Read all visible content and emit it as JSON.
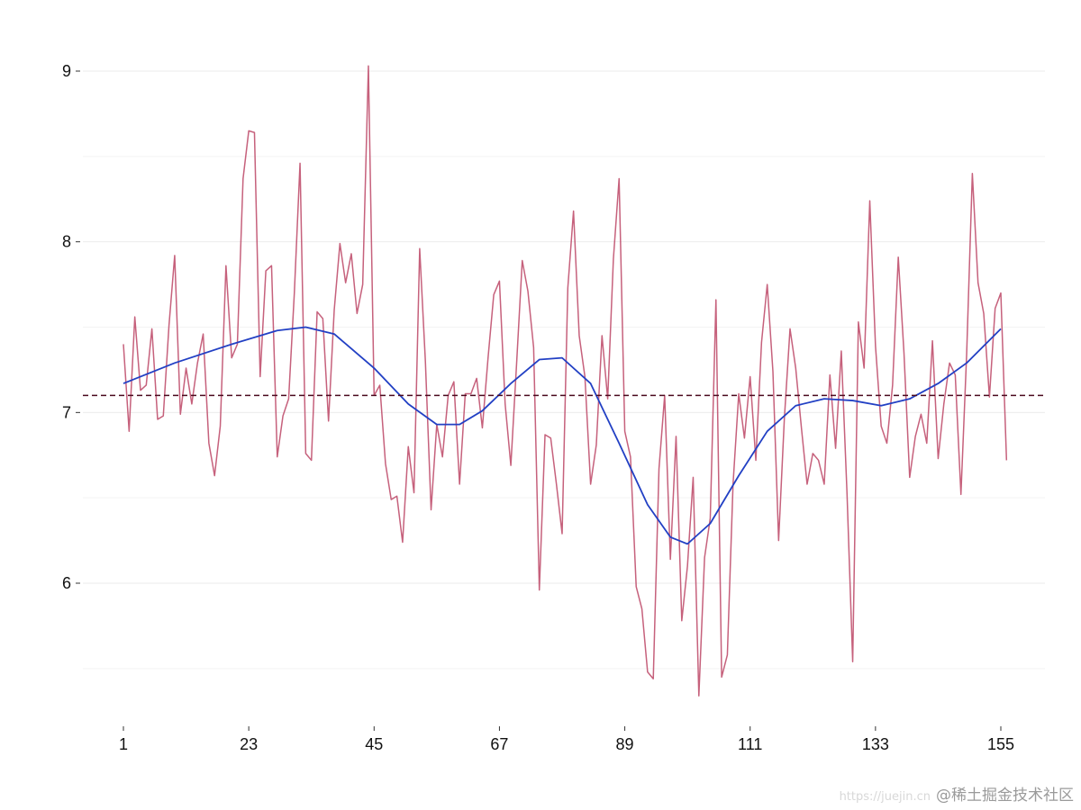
{
  "chart_data": {
    "type": "line",
    "title": "",
    "xlabel": "",
    "ylabel": "",
    "xlim": [
      1,
      155
    ],
    "ylim": [
      5.3,
      9.25
    ],
    "x_ticks": [
      1,
      23,
      45,
      67,
      89,
      111,
      133,
      155
    ],
    "y_ticks": [
      6,
      7,
      8,
      9
    ],
    "grid": "horizontal",
    "legend": "none",
    "reference_line": {
      "y": 7.1,
      "style": "dashed",
      "color": "#4a0a1e"
    },
    "series": [
      {
        "kind": "raw",
        "color": "#c0506e",
        "x_start": 1,
        "x_step": 1,
        "values": [
          7.4,
          6.89,
          7.56,
          7.13,
          7.16,
          7.49,
          6.96,
          6.98,
          7.51,
          7.92,
          6.99,
          7.26,
          7.05,
          7.29,
          7.46,
          6.82,
          6.63,
          6.92,
          7.86,
          7.32,
          7.4,
          8.37,
          8.65,
          8.64,
          7.21,
          7.83,
          7.86,
          6.74,
          6.98,
          7.08,
          7.7,
          8.46,
          6.76,
          6.72,
          7.59,
          7.55,
          6.95,
          7.6,
          7.99,
          7.76,
          7.93,
          7.58,
          7.75,
          9.03,
          7.1,
          7.16,
          6.7,
          6.49,
          6.51,
          6.24,
          6.8,
          6.53,
          7.96,
          7.3,
          6.43,
          6.93,
          6.74,
          7.1,
          7.18,
          6.58,
          7.11,
          7.11,
          7.2,
          6.91,
          7.32,
          7.69,
          7.77,
          7.05,
          6.69,
          7.28,
          7.89,
          7.71,
          7.38,
          5.96,
          6.87,
          6.85,
          6.58,
          6.29,
          7.73,
          8.18,
          7.45,
          7.21,
          6.58,
          6.81,
          7.45,
          7.08,
          7.9,
          8.37,
          6.89,
          6.74,
          5.98,
          5.85,
          5.48,
          5.44,
          6.67,
          7.1,
          6.14,
          6.86,
          5.78,
          6.1,
          6.62,
          5.34,
          6.15,
          6.38,
          7.66,
          5.45,
          5.58,
          6.58,
          7.11,
          6.85,
          7.21,
          6.72,
          7.41,
          7.75,
          7.24,
          6.25,
          6.96,
          7.49,
          7.26,
          6.91,
          6.58,
          6.76,
          6.72,
          6.58,
          7.22,
          6.79,
          7.36,
          6.53,
          5.54,
          7.53,
          7.26,
          8.24,
          7.39,
          6.92,
          6.82,
          7.16,
          7.91,
          7.35,
          6.62,
          6.86,
          6.99,
          6.82,
          7.42,
          6.73,
          7.05,
          7.29,
          7.22,
          6.52,
          7.34,
          8.4,
          7.76,
          7.58,
          7.09,
          7.61,
          7.7,
          6.72
        ]
      },
      {
        "kind": "smoothed",
        "color": "#2240c4",
        "points": [
          [
            1,
            7.17
          ],
          [
            10,
            7.29
          ],
          [
            20,
            7.4
          ],
          [
            28,
            7.48
          ],
          [
            33,
            7.5
          ],
          [
            38,
            7.46
          ],
          [
            45,
            7.26
          ],
          [
            51,
            7.05
          ],
          [
            56,
            6.93
          ],
          [
            60,
            6.93
          ],
          [
            64,
            7.01
          ],
          [
            69,
            7.17
          ],
          [
            74,
            7.31
          ],
          [
            78,
            7.32
          ],
          [
            83,
            7.17
          ],
          [
            88,
            6.82
          ],
          [
            93,
            6.46
          ],
          [
            97,
            6.27
          ],
          [
            100,
            6.23
          ],
          [
            104,
            6.35
          ],
          [
            109,
            6.63
          ],
          [
            114,
            6.89
          ],
          [
            119,
            7.04
          ],
          [
            124,
            7.08
          ],
          [
            129,
            7.07
          ],
          [
            134,
            7.04
          ],
          [
            139,
            7.08
          ],
          [
            144,
            7.17
          ],
          [
            149,
            7.29
          ],
          [
            155,
            7.49
          ]
        ]
      }
    ]
  },
  "watermark": {
    "url": "https://juejin.cn",
    "text": "@稀土掘金技术社区"
  }
}
